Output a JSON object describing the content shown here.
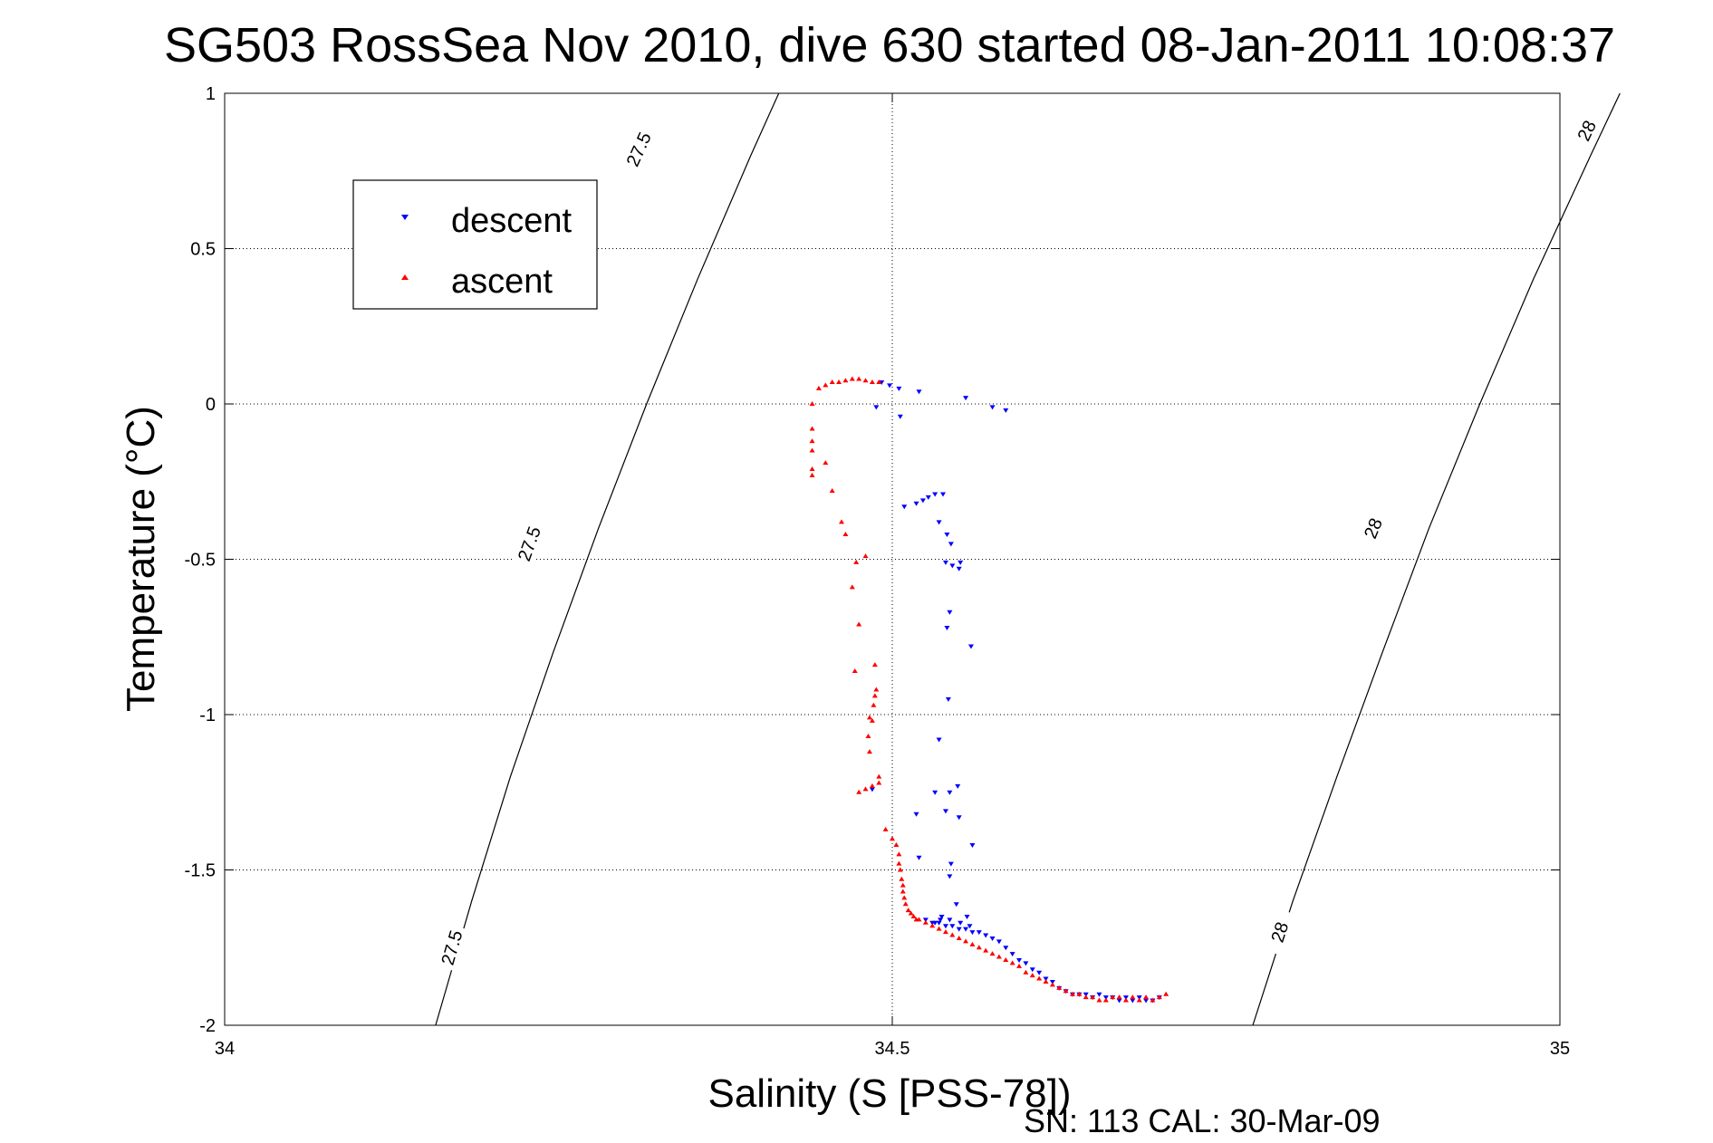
{
  "chart_data": {
    "type": "scatter",
    "title": "SG503 RossSea Nov 2010, dive 630 started 08-Jan-2011 10:08:37",
    "xlabel": "Salinity (S [PSS-78])",
    "ylabel": "Temperature (°C)",
    "xlim": [
      34,
      35
    ],
    "ylim": [
      -2,
      1
    ],
    "x_ticks": [
      34,
      34.5,
      35
    ],
    "x_tick_labels": [
      "34",
      "34.5",
      "35"
    ],
    "y_ticks": [
      1,
      0.5,
      0,
      -0.5,
      -1,
      -1.5,
      -2
    ],
    "y_tick_labels": [
      "1",
      "0.5",
      "0",
      "-0.5",
      "-1",
      "-1.5",
      "-2"
    ],
    "grid": true,
    "legend_position": "top-left",
    "footer": "SN: 113  CAL: 30-Mar-09",
    "isopycnals": [
      {
        "label": "27.5",
        "points": [
          [
            34.158,
            -2.0
          ],
          [
            34.185,
            -1.6
          ],
          [
            34.214,
            -1.2
          ],
          [
            34.246,
            -0.8
          ],
          [
            34.28,
            -0.4
          ],
          [
            34.316,
            0.0
          ],
          [
            34.354,
            0.4
          ],
          [
            34.394,
            0.8
          ],
          [
            34.415,
            1.0
          ]
        ],
        "label_positions": [
          [
            34.17,
            -1.75
          ],
          [
            34.228,
            -0.45
          ],
          [
            34.31,
            0.82
          ]
        ]
      },
      {
        "label": "28",
        "points": [
          [
            34.77,
            -2.0
          ],
          [
            34.8,
            -1.6
          ],
          [
            34.833,
            -1.2
          ],
          [
            34.867,
            -0.8
          ],
          [
            34.902,
            -0.4
          ],
          [
            34.94,
            0.0
          ],
          [
            34.98,
            0.4
          ],
          [
            35.023,
            0.8
          ],
          [
            35.045,
            1.0
          ]
        ],
        "label_positions": [
          [
            34.79,
            -1.7
          ],
          [
            34.86,
            -0.4
          ],
          [
            35.02,
            0.88
          ]
        ]
      }
    ],
    "series": [
      {
        "name": "descent",
        "marker": "triangle-down",
        "color": "#0000ff",
        "x": [
          34.492,
          34.498,
          34.505,
          34.52,
          34.555,
          34.575,
          34.585,
          34.488,
          34.506,
          34.509,
          34.518,
          34.523,
          34.527,
          34.532,
          34.538,
          34.535,
          34.541,
          34.544,
          34.54,
          34.545,
          34.551,
          34.55,
          34.543,
          34.541,
          34.559,
          34.542,
          34.535,
          34.549,
          34.543,
          34.532,
          34.518,
          34.485,
          34.54,
          34.55,
          34.56,
          34.544,
          34.543,
          34.52,
          34.548,
          34.532,
          34.556,
          34.536,
          34.558,
          34.551,
          34.543,
          34.537,
          34.525,
          34.53,
          34.535,
          34.54,
          34.545,
          34.55,
          34.555,
          34.56,
          34.565,
          34.57,
          34.575,
          34.58,
          34.585,
          34.59,
          34.595,
          34.6,
          34.605,
          34.61,
          34.615,
          34.62,
          34.625,
          34.63,
          34.635,
          34.64,
          34.645,
          34.65,
          34.655,
          34.66,
          34.665,
          34.67,
          34.675,
          34.68,
          34.685,
          34.69,
          34.695,
          34.7
        ],
        "y": [
          0.07,
          0.06,
          0.05,
          0.04,
          0.02,
          -0.01,
          -0.02,
          -0.01,
          -0.04,
          -0.33,
          -0.32,
          -0.31,
          -0.3,
          -0.29,
          -0.29,
          -0.38,
          -0.42,
          -0.45,
          -0.51,
          -0.52,
          -0.51,
          -0.53,
          -0.67,
          -0.72,
          -0.78,
          -0.95,
          -1.08,
          -1.23,
          -1.25,
          -1.25,
          -1.32,
          -1.24,
          -1.31,
          -1.33,
          -1.42,
          -1.48,
          -1.52,
          -1.46,
          -1.61,
          -1.67,
          -1.65,
          -1.66,
          -1.68,
          -1.67,
          -1.66,
          -1.65,
          -1.66,
          -1.67,
          -1.67,
          -1.68,
          -1.68,
          -1.69,
          -1.69,
          -1.7,
          -1.7,
          -1.71,
          -1.72,
          -1.73,
          -1.75,
          -1.77,
          -1.79,
          -1.8,
          -1.82,
          -1.83,
          -1.85,
          -1.86,
          -1.88,
          -1.89,
          -1.9,
          -1.9,
          -1.9,
          -1.91,
          -1.9,
          -1.91,
          -1.91,
          -1.92,
          -1.91,
          -1.92,
          -1.91,
          -1.92,
          -1.92,
          -1.91
        ]
      },
      {
        "name": "ascent",
        "marker": "triangle-up",
        "color": "#ff0000",
        "x": [
          34.44,
          34.445,
          34.45,
          34.455,
          34.46,
          34.465,
          34.47,
          34.475,
          34.48,
          34.485,
          34.49,
          34.44,
          34.44,
          34.44,
          34.44,
          34.44,
          34.45,
          34.455,
          34.462,
          34.465,
          34.48,
          34.473,
          34.47,
          34.475,
          34.472,
          34.487,
          34.488,
          34.487,
          34.486,
          34.485,
          34.483,
          34.482,
          34.483,
          34.475,
          34.48,
          34.485,
          34.49,
          34.49,
          34.495,
          34.5,
          34.503,
          34.505,
          34.505,
          34.506,
          34.507,
          34.508,
          34.508,
          34.509,
          34.51,
          34.512,
          34.514,
          34.516,
          34.518,
          34.52,
          34.525,
          34.53,
          34.535,
          34.54,
          34.545,
          34.55,
          34.555,
          34.56,
          34.565,
          34.57,
          34.575,
          34.58,
          34.585,
          34.59,
          34.595,
          34.6,
          34.605,
          34.61,
          34.615,
          34.62,
          34.625,
          34.63,
          34.635,
          34.64,
          34.645,
          34.65,
          34.655,
          34.66,
          34.665,
          34.67,
          34.675,
          34.68,
          34.685,
          34.69,
          34.695,
          34.7,
          34.705
        ],
        "y": [
          0.0,
          0.05,
          0.06,
          0.07,
          0.07,
          0.075,
          0.08,
          0.08,
          0.075,
          0.07,
          0.07,
          -0.08,
          -0.12,
          -0.15,
          -0.21,
          -0.23,
          -0.19,
          -0.28,
          -0.38,
          -0.42,
          -0.49,
          -0.51,
          -0.59,
          -0.71,
          -0.86,
          -0.84,
          -0.92,
          -0.94,
          -0.97,
          -1.02,
          -1.01,
          -1.07,
          -1.12,
          -1.25,
          -1.24,
          -1.23,
          -1.22,
          -1.2,
          -1.37,
          -1.4,
          -1.42,
          -1.45,
          -1.48,
          -1.5,
          -1.53,
          -1.55,
          -1.57,
          -1.59,
          -1.61,
          -1.63,
          -1.64,
          -1.65,
          -1.66,
          -1.66,
          -1.67,
          -1.68,
          -1.69,
          -1.7,
          -1.71,
          -1.72,
          -1.73,
          -1.74,
          -1.75,
          -1.76,
          -1.77,
          -1.78,
          -1.79,
          -1.8,
          -1.81,
          -1.83,
          -1.84,
          -1.85,
          -1.86,
          -1.87,
          -1.88,
          -1.89,
          -1.9,
          -1.9,
          -1.91,
          -1.91,
          -1.92,
          -1.92,
          -1.91,
          -1.91,
          -1.92,
          -1.91,
          -1.92,
          -1.91,
          -1.92,
          -1.91,
          -1.9
        ]
      }
    ]
  }
}
